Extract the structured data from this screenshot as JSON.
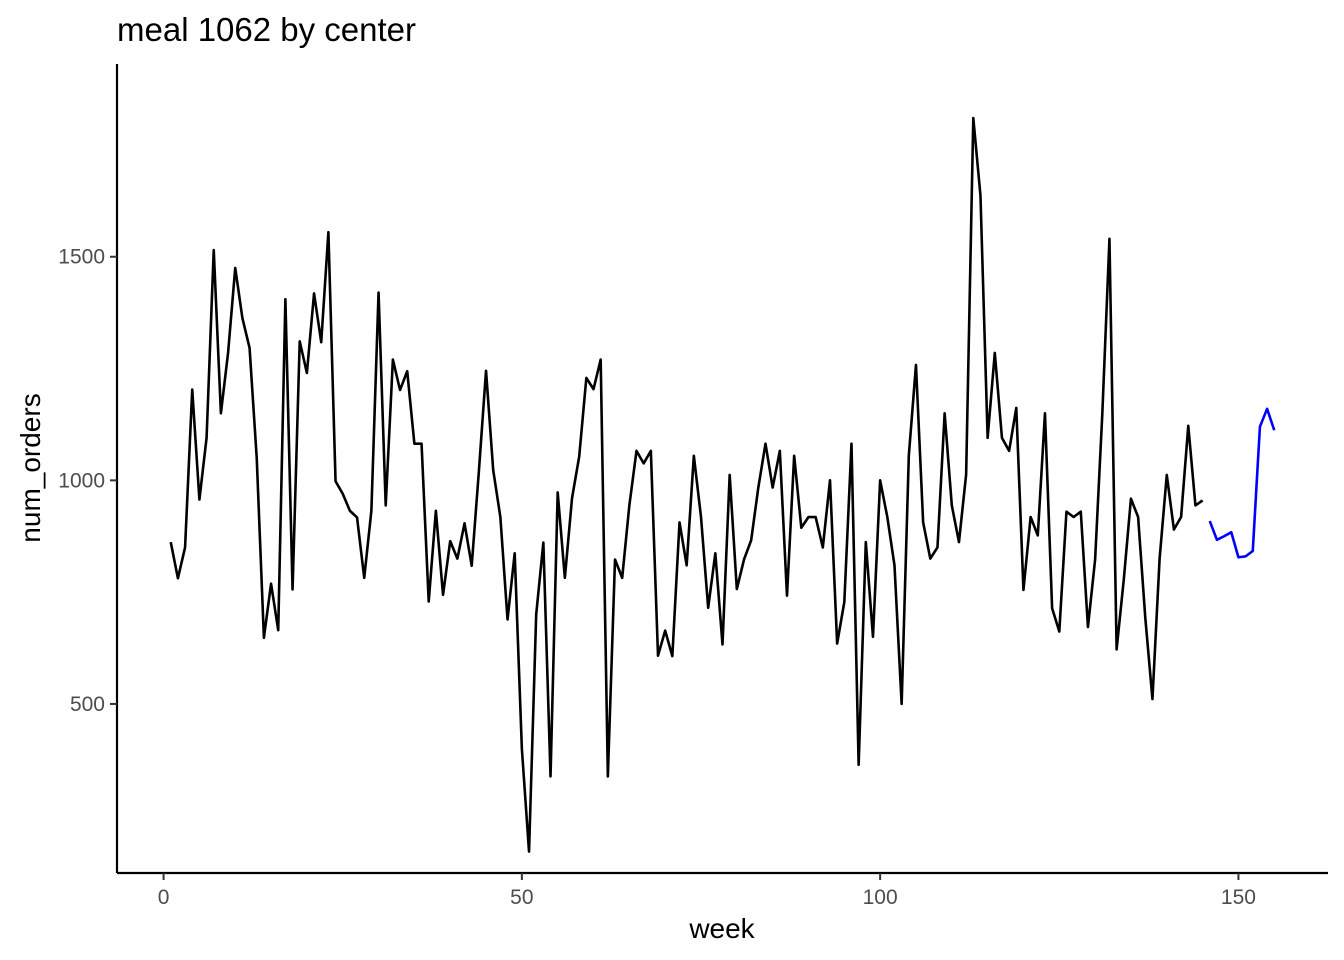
{
  "chart_data": {
    "type": "line",
    "title": "meal 1062 by center",
    "xlabel": "week",
    "ylabel": "num_orders",
    "xlim": [
      -6.5,
      162.5
    ],
    "ylim": [
      122,
      1931
    ],
    "x_ticks": [
      0,
      50,
      100,
      150
    ],
    "y_ticks": [
      500,
      1000,
      1500
    ],
    "grid": false,
    "series": [
      {
        "color": "#000000",
        "x": [
          1,
          2,
          3,
          4,
          5,
          6,
          7,
          8,
          9,
          10,
          11,
          12,
          13,
          14,
          15,
          16,
          17,
          18,
          19,
          20,
          21,
          22,
          23,
          24,
          25,
          26,
          27,
          28,
          29,
          30,
          31,
          32,
          33,
          34,
          35,
          36,
          37,
          38,
          39,
          40,
          41,
          42,
          43,
          44,
          45,
          46,
          47,
          48,
          49,
          50,
          51,
          52,
          53,
          54,
          55,
          56,
          57,
          58,
          59,
          60,
          61,
          62,
          63,
          64,
          65,
          66,
          67,
          68,
          69,
          70,
          71,
          72,
          73,
          74,
          75,
          76,
          77,
          78,
          79,
          80,
          81,
          82,
          83,
          84,
          85,
          86,
          87,
          88,
          89,
          90,
          91,
          92,
          93,
          94,
          95,
          96,
          97,
          98,
          99,
          100,
          101,
          102,
          103,
          104,
          105,
          106,
          107,
          108,
          109,
          110,
          111,
          112,
          113,
          114,
          115,
          116,
          117,
          118,
          119,
          120,
          121,
          122,
          123,
          124,
          125,
          126,
          127,
          128,
          129,
          130,
          131,
          132,
          133,
          134,
          135,
          136,
          137,
          138,
          139,
          140,
          141,
          142,
          143,
          144,
          145
        ],
        "y": [
          862,
          781,
          850,
          1203,
          957,
          1095,
          1515,
          1150,
          1285,
          1475,
          1363,
          1296,
          1050,
          648,
          769,
          665,
          1405,
          756,
          1311,
          1240,
          1418,
          1309,
          1555,
          998,
          970,
          932,
          917,
          782,
          932,
          1420,
          944,
          1270,
          1202,
          1244,
          1082,
          1082,
          729,
          932,
          744,
          864,
          825,
          904,
          809,
          1020,
          1245,
          1023,
          918,
          689,
          837,
          400,
          170,
          700,
          861,
          338,
          973,
          782,
          960,
          1053,
          1229,
          1204,
          1270,
          338,
          823,
          782,
          944,
          1066,
          1038,
          1066,
          608,
          664,
          607,
          906,
          810,
          1055,
          918,
          715,
          837,
          633,
          1012,
          757,
          823,
          866,
          984,
          1082,
          984,
          1066,
          742,
          1055,
          894,
          918,
          918,
          850,
          1000,
          635,
          728,
          1082,
          364,
          862,
          650,
          1000,
          918,
          810,
          500,
          1055,
          1258,
          906,
          825,
          850,
          1150,
          944,
          862,
          1013,
          1810,
          1637,
          1095,
          1285,
          1095,
          1066,
          1162,
          755,
          918,
          877,
          1150,
          714,
          662,
          930,
          918,
          930,
          672,
          823,
          1147,
          1540,
          622,
          778,
          959,
          918,
          693,
          511,
          825,
          1012,
          890,
          918,
          1122,
          944,
          955
        ]
      },
      {
        "color": "#0000ff",
        "x": [
          146,
          147,
          148,
          149,
          150,
          151,
          152,
          153,
          154,
          155
        ],
        "y": [
          909,
          867,
          875,
          884,
          828,
          830,
          842,
          1120,
          1160,
          1112
        ]
      }
    ]
  }
}
